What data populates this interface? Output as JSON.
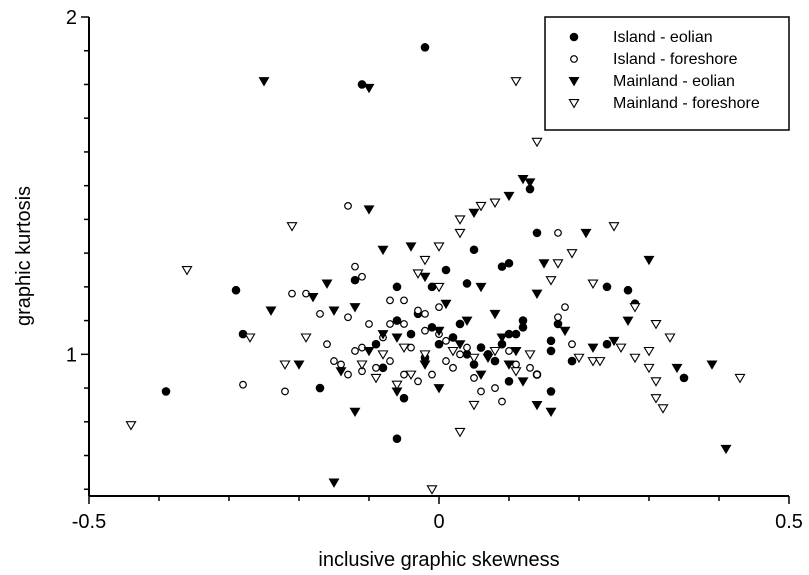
{
  "chart_data": {
    "type": "scatter",
    "title": "",
    "xlabel": "inclusive graphic skewness",
    "ylabel": "graphic kurtosis",
    "xlim": [
      -0.5,
      0.5
    ],
    "ylim": [
      0.58,
      2.0
    ],
    "x_ticks": [
      {
        "value": -0.5,
        "label": "-0.5"
      },
      {
        "value": 0,
        "label": "0"
      },
      {
        "value": 0.5,
        "label": "0.5"
      }
    ],
    "y_ticks": [
      {
        "value": 1,
        "label": "1"
      },
      {
        "value": 2,
        "label": "2"
      }
    ],
    "grid": false,
    "legend_position": "top-right",
    "series": [
      {
        "name": "Island - eolian",
        "marker": "filled-circle",
        "points": [
          [
            -0.02,
            1.91
          ],
          [
            -0.11,
            1.8
          ],
          [
            0.13,
            1.49
          ],
          [
            0.14,
            1.36
          ],
          [
            0.09,
            1.26
          ],
          [
            0.05,
            1.31
          ],
          [
            0.1,
            1.27
          ],
          [
            -0.29,
            1.19
          ],
          [
            -0.28,
            1.06
          ],
          [
            0.24,
            1.2
          ],
          [
            0.28,
            1.15
          ],
          [
            0.27,
            1.19
          ],
          [
            0.17,
            1.09
          ],
          [
            0.16,
            1.04
          ],
          [
            0.12,
            1.08
          ],
          [
            0.1,
            1.06
          ],
          [
            0.09,
            1.03
          ],
          [
            0.06,
            1.02
          ],
          [
            0.04,
            1.0
          ],
          [
            0.02,
            1.05
          ],
          [
            -0.01,
            1.08
          ],
          [
            -0.04,
            1.06
          ],
          [
            -0.06,
            1.1
          ],
          [
            -0.09,
            1.03
          ],
          [
            0.01,
            1.25
          ],
          [
            -0.01,
            1.2
          ],
          [
            0.04,
            1.21
          ],
          [
            -0.06,
            1.2
          ],
          [
            -0.12,
            1.22
          ],
          [
            -0.39,
            0.89
          ],
          [
            -0.17,
            0.9
          ],
          [
            -0.06,
            0.75
          ],
          [
            -0.05,
            0.87
          ],
          [
            0.16,
            0.89
          ],
          [
            0.35,
            0.93
          ],
          [
            0.24,
            1.03
          ],
          [
            0.12,
            1.1
          ],
          [
            0.11,
            1.06
          ],
          [
            0.08,
            0.98
          ],
          [
            0.05,
            0.97
          ],
          [
            0.0,
            1.03
          ],
          [
            -0.02,
            0.99
          ],
          [
            -0.08,
            0.96
          ],
          [
            0.19,
            0.98
          ],
          [
            0.14,
            0.94
          ],
          [
            0.16,
            1.01
          ],
          [
            0.1,
            0.92
          ],
          [
            0.07,
            1.0
          ],
          [
            -0.03,
            1.12
          ],
          [
            0.03,
            1.09
          ]
        ]
      },
      {
        "name": "Island - foreshore",
        "marker": "open-circle",
        "points": [
          [
            -0.13,
            1.44
          ],
          [
            0.17,
            1.36
          ],
          [
            -0.21,
            1.18
          ],
          [
            -0.19,
            1.18
          ],
          [
            -0.17,
            1.12
          ],
          [
            -0.13,
            1.11
          ],
          [
            -0.12,
            1.26
          ],
          [
            -0.11,
            1.23
          ],
          [
            -0.07,
            1.16
          ],
          [
            -0.05,
            1.16
          ],
          [
            -0.03,
            1.13
          ],
          [
            -0.02,
            1.12
          ],
          [
            0.0,
            1.14
          ],
          [
            -0.05,
            1.09
          ],
          [
            -0.07,
            1.09
          ],
          [
            -0.1,
            1.09
          ],
          [
            -0.08,
            1.05
          ],
          [
            -0.11,
            1.02
          ],
          [
            -0.12,
            1.01
          ],
          [
            -0.16,
            1.03
          ],
          [
            -0.15,
            0.98
          ],
          [
            -0.14,
            0.97
          ],
          [
            -0.13,
            0.94
          ],
          [
            -0.11,
            0.95
          ],
          [
            -0.09,
            0.96
          ],
          [
            -0.07,
            0.98
          ],
          [
            -0.05,
            0.94
          ],
          [
            -0.03,
            0.92
          ],
          [
            -0.01,
            0.94
          ],
          [
            0.02,
            0.96
          ],
          [
            0.05,
            0.93
          ],
          [
            0.06,
            0.89
          ],
          [
            0.08,
            0.9
          ],
          [
            0.09,
            0.86
          ],
          [
            -0.28,
            0.91
          ],
          [
            -0.22,
            0.89
          ],
          [
            0.18,
            1.14
          ],
          [
            0.17,
            1.11
          ],
          [
            0.19,
            1.03
          ],
          [
            0.14,
            0.94
          ],
          [
            0.13,
            0.96
          ],
          [
            0.01,
            1.04
          ],
          [
            0.0,
            1.06
          ],
          [
            -0.02,
            1.07
          ],
          [
            -0.04,
            1.02
          ],
          [
            0.03,
            1.0
          ],
          [
            0.04,
            1.02
          ],
          [
            0.01,
            0.98
          ],
          [
            0.11,
            0.97
          ],
          [
            0.1,
            1.01
          ]
        ]
      },
      {
        "name": "Mainland - eolian",
        "marker": "filled-triangle-down",
        "points": [
          [
            -0.25,
            1.81
          ],
          [
            -0.1,
            1.79
          ],
          [
            0.12,
            1.52
          ],
          [
            0.13,
            1.51
          ],
          [
            0.1,
            1.47
          ],
          [
            0.05,
            1.42
          ],
          [
            -0.1,
            1.43
          ],
          [
            0.15,
            1.27
          ],
          [
            0.21,
            1.36
          ],
          [
            0.3,
            1.28
          ],
          [
            -0.04,
            1.32
          ],
          [
            -0.08,
            1.31
          ],
          [
            -0.16,
            1.21
          ],
          [
            -0.15,
            1.13
          ],
          [
            -0.24,
            1.13
          ],
          [
            -0.12,
            1.14
          ],
          [
            -0.02,
            1.23
          ],
          [
            0.06,
            1.2
          ],
          [
            0.14,
            1.18
          ],
          [
            0.08,
            1.12
          ],
          [
            0.04,
            1.1
          ],
          [
            0.0,
            1.07
          ],
          [
            -0.06,
            1.05
          ],
          [
            -0.1,
            1.01
          ],
          [
            -0.14,
            0.95
          ],
          [
            -0.2,
            0.97
          ],
          [
            -0.12,
            0.83
          ],
          [
            -0.06,
            0.89
          ],
          [
            0.0,
            0.9
          ],
          [
            0.06,
            0.94
          ],
          [
            0.1,
            0.97
          ],
          [
            0.12,
            0.92
          ],
          [
            0.14,
            0.85
          ],
          [
            0.16,
            0.83
          ],
          [
            -0.15,
            0.62
          ],
          [
            0.41,
            0.72
          ],
          [
            0.39,
            0.97
          ],
          [
            0.34,
            0.96
          ],
          [
            0.27,
            1.1
          ],
          [
            0.25,
            1.04
          ],
          [
            0.22,
            1.02
          ],
          [
            0.18,
            1.07
          ],
          [
            0.03,
            1.03
          ],
          [
            0.09,
            1.05
          ],
          [
            0.07,
            0.99
          ],
          [
            0.11,
            1.01
          ],
          [
            -0.02,
            0.97
          ],
          [
            -0.08,
            1.06
          ],
          [
            0.01,
            1.15
          ],
          [
            -0.18,
            1.17
          ]
        ]
      },
      {
        "name": "Mainland - foreshore",
        "marker": "open-triangle-down",
        "points": [
          [
            0.11,
            1.81
          ],
          [
            0.14,
            1.63
          ],
          [
            -0.44,
            0.79
          ],
          [
            -0.36,
            1.25
          ],
          [
            -0.21,
            1.38
          ],
          [
            0.03,
            1.4
          ],
          [
            0.06,
            1.44
          ],
          [
            0.08,
            1.45
          ],
          [
            0.03,
            1.36
          ],
          [
            0.0,
            1.32
          ],
          [
            -0.02,
            1.28
          ],
          [
            -0.03,
            1.24
          ],
          [
            0.0,
            1.2
          ],
          [
            0.25,
            1.38
          ],
          [
            0.19,
            1.3
          ],
          [
            0.17,
            1.27
          ],
          [
            0.16,
            1.22
          ],
          [
            0.22,
            1.21
          ],
          [
            0.28,
            1.14
          ],
          [
            0.31,
            1.09
          ],
          [
            0.33,
            1.05
          ],
          [
            0.3,
            1.01
          ],
          [
            0.26,
            1.02
          ],
          [
            0.28,
            0.99
          ],
          [
            0.3,
            0.96
          ],
          [
            0.31,
            0.92
          ],
          [
            0.31,
            0.87
          ],
          [
            0.32,
            0.84
          ],
          [
            0.43,
            0.93
          ],
          [
            0.08,
            1.01
          ],
          [
            0.05,
            0.99
          ],
          [
            0.02,
            1.01
          ],
          [
            -0.02,
            1.0
          ],
          [
            -0.05,
            1.02
          ],
          [
            -0.08,
            1.0
          ],
          [
            -0.11,
            0.97
          ],
          [
            -0.09,
            0.93
          ],
          [
            -0.06,
            0.91
          ],
          [
            -0.04,
            0.94
          ],
          [
            -0.01,
            0.6
          ],
          [
            0.03,
            0.77
          ],
          [
            0.05,
            0.85
          ],
          [
            -0.27,
            1.05
          ],
          [
            -0.22,
            0.97
          ],
          [
            -0.19,
            1.05
          ],
          [
            0.11,
            0.95
          ],
          [
            0.13,
            1.0
          ],
          [
            0.2,
            0.99
          ],
          [
            0.22,
            0.98
          ],
          [
            0.23,
            0.98
          ]
        ]
      }
    ]
  }
}
